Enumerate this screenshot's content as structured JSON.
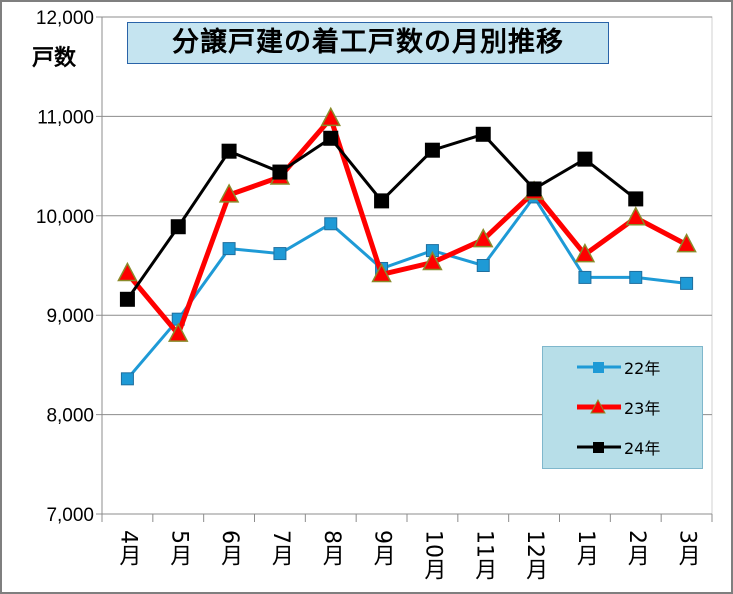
{
  "chart_data": {
    "type": "line",
    "title": "分譲戸建の着工戸数の月別推移",
    "ylabel": "戸数",
    "xlabel": "",
    "ylim": [
      7000,
      12000
    ],
    "yticks": [
      "7,000",
      "8,000",
      "9,000",
      "10,000",
      "11,000",
      "12,000"
    ],
    "grid": true,
    "legend_position": "bottom-right",
    "categories": [
      "4月",
      "5月",
      "6月",
      "7月",
      "8月",
      "9月",
      "10月",
      "11月",
      "12月",
      "1月",
      "2月",
      "3月"
    ],
    "series": [
      {
        "name": "22年",
        "color": "#1e9ad6",
        "marker": "square",
        "values": [
          8360,
          8960,
          9670,
          9620,
          9920,
          9470,
          9650,
          9500,
          10190,
          9380,
          9380,
          9320
        ]
      },
      {
        "name": "23年",
        "color": "#ff0000",
        "marker": "triangle",
        "values": [
          9420,
          8810,
          10210,
          10390,
          10980,
          9410,
          9530,
          9760,
          10240,
          9610,
          9980,
          9710
        ]
      },
      {
        "name": "24年",
        "color": "#000000",
        "marker": "square",
        "values": [
          9160,
          9890,
          10650,
          10440,
          10780,
          10150,
          10660,
          10820,
          10270,
          10570,
          10170,
          null
        ]
      }
    ]
  }
}
